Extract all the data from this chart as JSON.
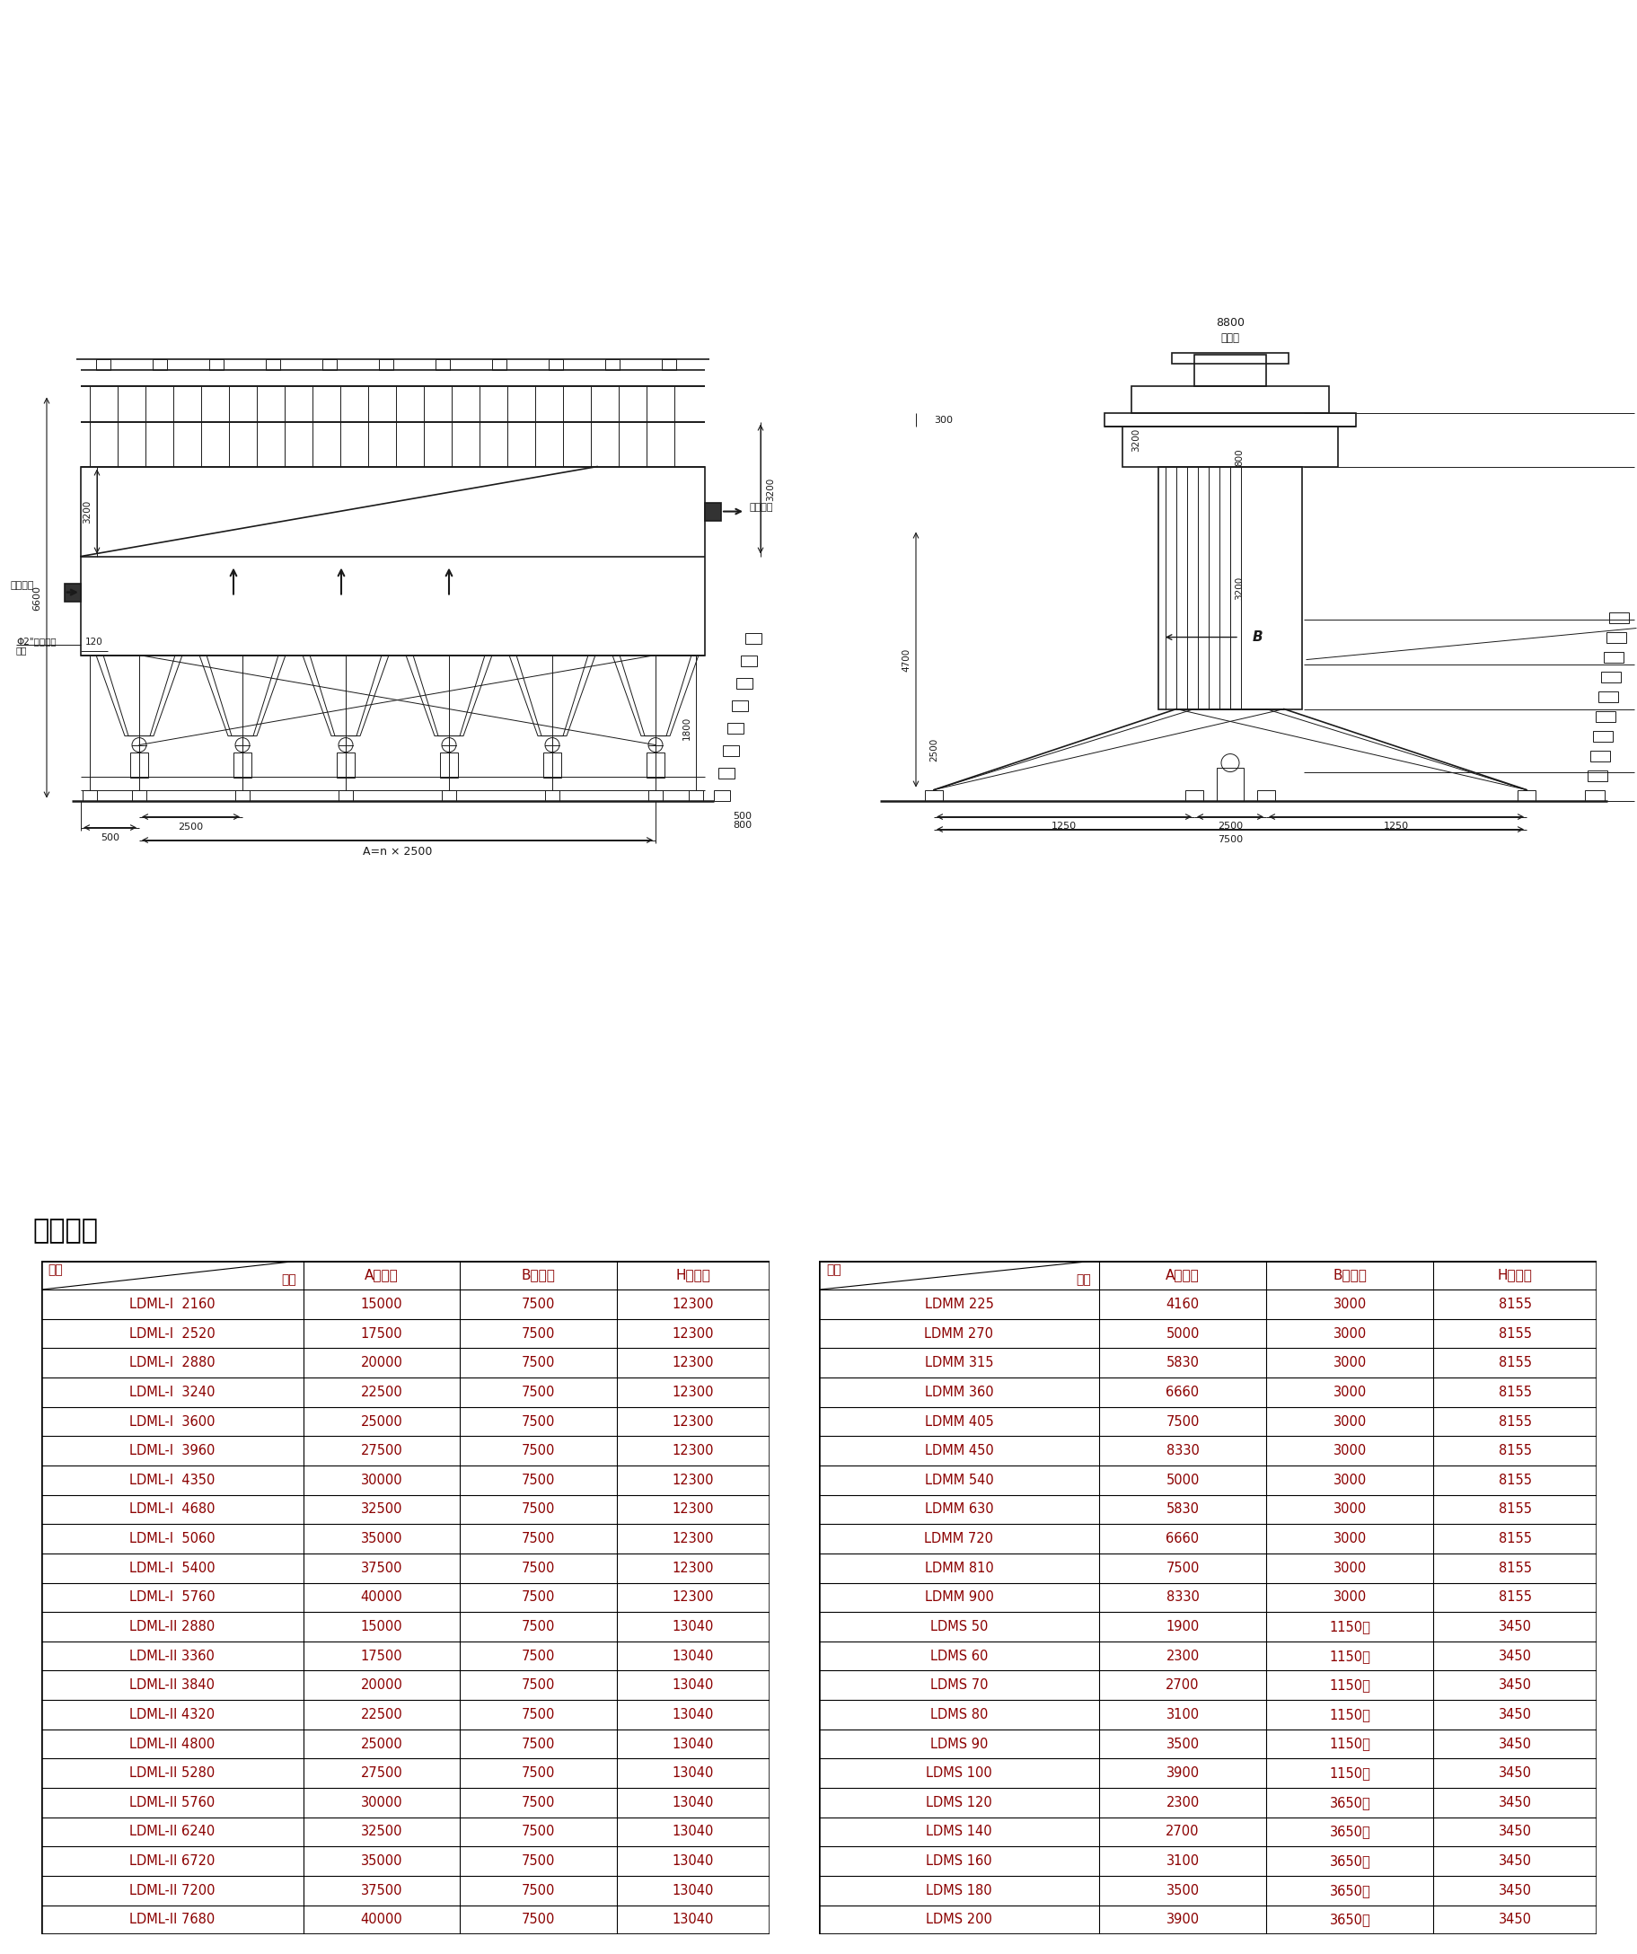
{
  "section_title": "主要尺寸",
  "bg_color": "#ffffff",
  "table1_col_labels": [
    "型号",
    "A（长）",
    "B（宽）",
    "H（高）"
  ],
  "table1_header_row": [
    "项目",
    "A（长）",
    "B（宽）",
    "H（高）"
  ],
  "table1_data": [
    [
      "LDML-I  2160",
      "15000",
      "7500",
      "12300"
    ],
    [
      "LDML-I  2520",
      "17500",
      "7500",
      "12300"
    ],
    [
      "LDML-I  2880",
      "20000",
      "7500",
      "12300"
    ],
    [
      "LDML-I  3240",
      "22500",
      "7500",
      "12300"
    ],
    [
      "LDML-I  3600",
      "25000",
      "7500",
      "12300"
    ],
    [
      "LDML-I  3960",
      "27500",
      "7500",
      "12300"
    ],
    [
      "LDML-I  4350",
      "30000",
      "7500",
      "12300"
    ],
    [
      "LDML-I  4680",
      "32500",
      "7500",
      "12300"
    ],
    [
      "LDML-I  5060",
      "35000",
      "7500",
      "12300"
    ],
    [
      "LDML-I  5400",
      "37500",
      "7500",
      "12300"
    ],
    [
      "LDML-I  5760",
      "40000",
      "7500",
      "12300"
    ],
    [
      "LDML-II 2880",
      "15000",
      "7500",
      "13040"
    ],
    [
      "LDML-II 3360",
      "17500",
      "7500",
      "13040"
    ],
    [
      "LDML-II 3840",
      "20000",
      "7500",
      "13040"
    ],
    [
      "LDML-II 4320",
      "22500",
      "7500",
      "13040"
    ],
    [
      "LDML-II 4800",
      "25000",
      "7500",
      "13040"
    ],
    [
      "LDML-II 5280",
      "27500",
      "7500",
      "13040"
    ],
    [
      "LDML-II 5760",
      "30000",
      "7500",
      "13040"
    ],
    [
      "LDML-II 6240",
      "32500",
      "7500",
      "13040"
    ],
    [
      "LDML-II 6720",
      "35000",
      "7500",
      "13040"
    ],
    [
      "LDML-II 7200",
      "37500",
      "7500",
      "13040"
    ],
    [
      "LDML-II 7680",
      "40000",
      "7500",
      "13040"
    ]
  ],
  "table2_col_labels": [
    "型号",
    "A（长）",
    "B（宽）",
    "H（高）"
  ],
  "table2_header_row": [
    "项目",
    "A（长）",
    "B（宽）",
    "H（高）"
  ],
  "table2_data": [
    [
      "LDMM 225",
      "4160",
      "3000",
      "8155"
    ],
    [
      "LDMM 270",
      "5000",
      "3000",
      "8155"
    ],
    [
      "LDMM 315",
      "5830",
      "3000",
      "8155"
    ],
    [
      "LDMM 360",
      "6660",
      "3000",
      "8155"
    ],
    [
      "LDMM 405",
      "7500",
      "3000",
      "8155"
    ],
    [
      "LDMM 450",
      "8330",
      "3000",
      "8155"
    ],
    [
      "LDMM 540",
      "5000",
      "3000",
      "8155"
    ],
    [
      "LDMM 630",
      "5830",
      "3000",
      "8155"
    ],
    [
      "LDMM 720",
      "6660",
      "3000",
      "8155"
    ],
    [
      "LDMM 810",
      "7500",
      "3000",
      "8155"
    ],
    [
      "LDMM 900",
      "8330",
      "3000",
      "8155"
    ],
    [
      "LDMS 50",
      "1900",
      "1150单",
      "3450"
    ],
    [
      "LDMS 60",
      "2300",
      "1150单",
      "3450"
    ],
    [
      "LDMS 70",
      "2700",
      "1150单",
      "3450"
    ],
    [
      "LDMS 80",
      "3100",
      "1150单",
      "3450"
    ],
    [
      "LDMS 90",
      "3500",
      "1150单",
      "3450"
    ],
    [
      "LDMS 100",
      "3900",
      "1150单",
      "3450"
    ],
    [
      "LDMS 120",
      "2300",
      "3650双",
      "3450"
    ],
    [
      "LDMS 140",
      "2700",
      "3650双",
      "3450"
    ],
    [
      "LDMS 160",
      "3100",
      "3650双",
      "3450"
    ],
    [
      "LDMS 180",
      "3500",
      "3650双",
      "3450"
    ],
    [
      "LDMS 200",
      "3900",
      "3650双",
      "3450"
    ]
  ],
  "draw_color": "#1a1a1a",
  "table_text_color": "#8B0000"
}
